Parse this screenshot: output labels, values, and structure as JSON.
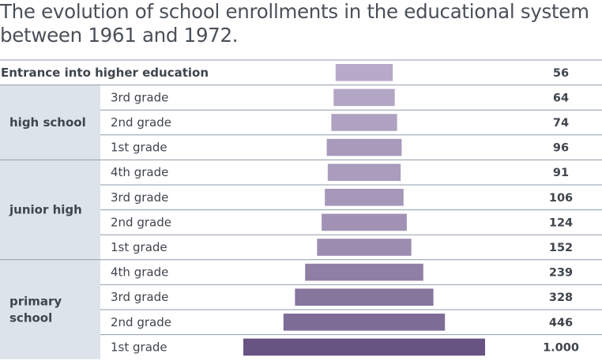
{
  "title_lines": [
    "The evolution of school enrollments in the educational system",
    "between 1961 and 1972."
  ],
  "colors": {
    "group_bg": "#dde3ea",
    "line": "#8f9ba8",
    "bar_light": "#b7aac8",
    "bar_dark": "#675482"
  },
  "chart_data": {
    "type": "bar",
    "orientation": "horizontal-centered",
    "title": "The evolution of school enrollments in the educational system between 1961 and 1972.",
    "rows": [
      {
        "group": "Entrance into higher education",
        "label": "",
        "value": 56,
        "value_label": "56"
      },
      {
        "group": "high school",
        "label": "3rd grade",
        "value": 64,
        "value_label": "64"
      },
      {
        "group": "high school",
        "label": "2nd grade",
        "value": 74,
        "value_label": "74"
      },
      {
        "group": "high school",
        "label": "1st grade",
        "value": 96,
        "value_label": "96"
      },
      {
        "group": "junior high",
        "label": "4th grade",
        "value": 91,
        "value_label": "91"
      },
      {
        "group": "junior high",
        "label": "3rd grade",
        "value": 106,
        "value_label": "106"
      },
      {
        "group": "junior high",
        "label": "2nd grade",
        "value": 124,
        "value_label": "124"
      },
      {
        "group": "junior high",
        "label": "1st grade",
        "value": 152,
        "value_label": "152"
      },
      {
        "group": "primary school",
        "label": "4th grade",
        "value": 239,
        "value_label": "239"
      },
      {
        "group": "primary school",
        "label": "3rd grade",
        "value": 328,
        "value_label": "328"
      },
      {
        "group": "primary school",
        "label": "2nd grade",
        "value": 446,
        "value_label": "446"
      },
      {
        "group": "primary school",
        "label": "1st grade",
        "value": 1000,
        "value_label": "1.000"
      }
    ],
    "groups": [
      {
        "name": "high school",
        "lines": [
          "high school"
        ]
      },
      {
        "name": "junior high",
        "lines": [
          "junior high"
        ]
      },
      {
        "name": "primary school",
        "lines": [
          "primary",
          "school"
        ]
      }
    ],
    "xlim": [
      0,
      1000
    ]
  }
}
